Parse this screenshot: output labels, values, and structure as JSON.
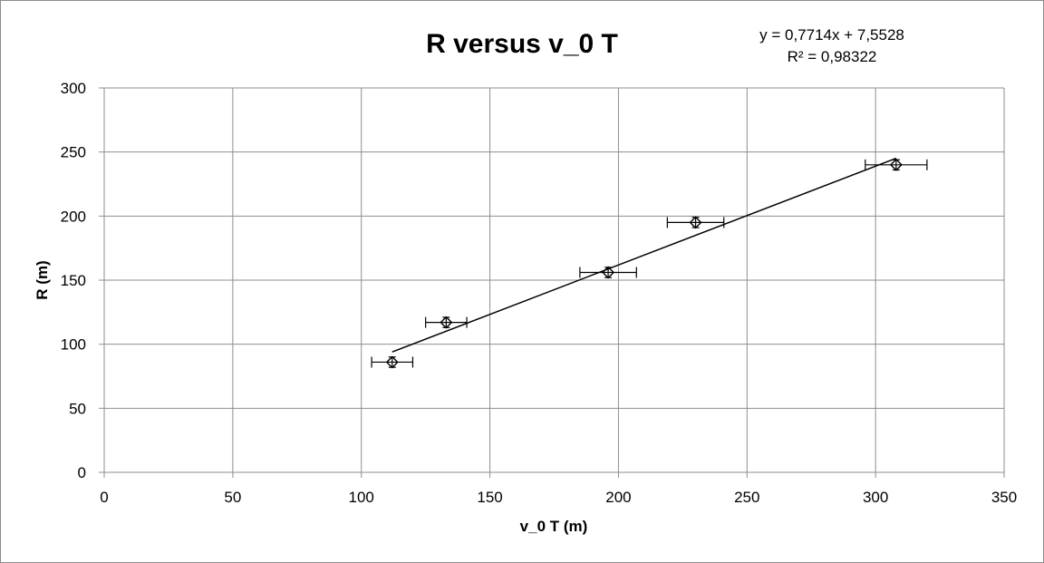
{
  "chart_data": {
    "type": "scatter",
    "title": "R versus v_0 T",
    "xlabel": "v_0 T (m)",
    "ylabel": "R (m)",
    "xlim": [
      0,
      350
    ],
    "ylim": [
      0,
      300
    ],
    "x_ticks": [
      "0",
      "50",
      "100",
      "150",
      "200",
      "250",
      "300",
      "350"
    ],
    "y_ticks": [
      "0",
      "50",
      "100",
      "150",
      "200",
      "250",
      "300"
    ],
    "grid": true,
    "legend": "none",
    "series": [
      {
        "marker": "diamond",
        "x": [
          112,
          133,
          196,
          230,
          308
        ],
        "y": [
          86,
          117,
          156,
          195,
          240
        ],
        "x_error": [
          8,
          8,
          11,
          11,
          12
        ],
        "y_error": [
          4,
          4,
          4,
          4,
          4
        ]
      }
    ],
    "trendline": {
      "type": "linear",
      "slope": 0.7714,
      "intercept": 7.5528,
      "x_range": [
        112,
        308
      ],
      "equation_text": "y = 0,7714x + 7,5528",
      "r2_text": "R² = 0,98322"
    }
  }
}
